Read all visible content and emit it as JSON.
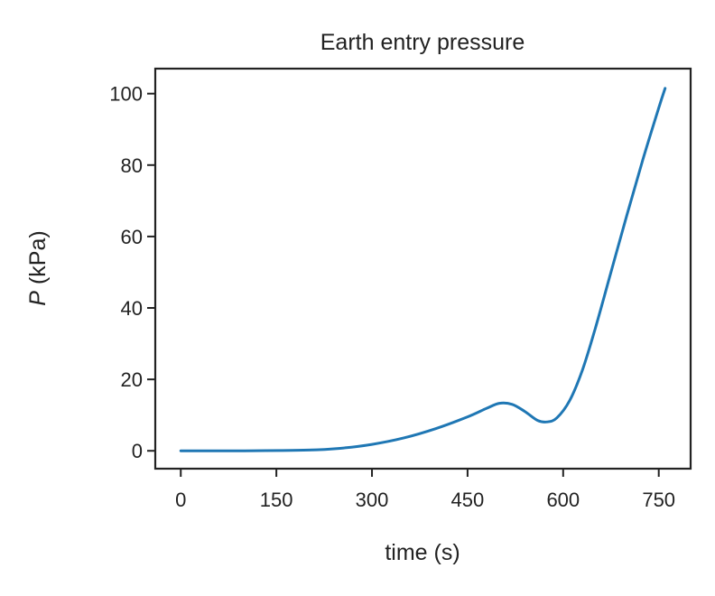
{
  "chart_data": {
    "type": "line",
    "title": "Earth entry pressure",
    "xlabel": "time (s)",
    "ylabel_symbol": "P",
    "ylabel_unit": " (kPa)",
    "xlim": [
      -40,
      800
    ],
    "ylim": [
      -5,
      107
    ],
    "xticks": [
      0,
      150,
      300,
      450,
      600,
      750
    ],
    "yticks": [
      0,
      20,
      40,
      60,
      80,
      100
    ],
    "grid": false,
    "series": [
      {
        "color": "#1f77b4",
        "x": [
          0,
          100,
          200,
          250,
          300,
          350,
          400,
          450,
          480,
          500,
          520,
          540,
          560,
          575,
          590,
          610,
          630,
          650,
          675,
          700,
          725,
          750,
          760
        ],
        "y": [
          0,
          0,
          0.2,
          0.7,
          1.8,
          3.6,
          6.2,
          9.5,
          11.9,
          13.3,
          13.0,
          11.0,
          8.5,
          8.1,
          9.2,
          14.0,
          22.5,
          34.0,
          50.0,
          66.0,
          81.5,
          96.0,
          101.5
        ]
      }
    ]
  }
}
